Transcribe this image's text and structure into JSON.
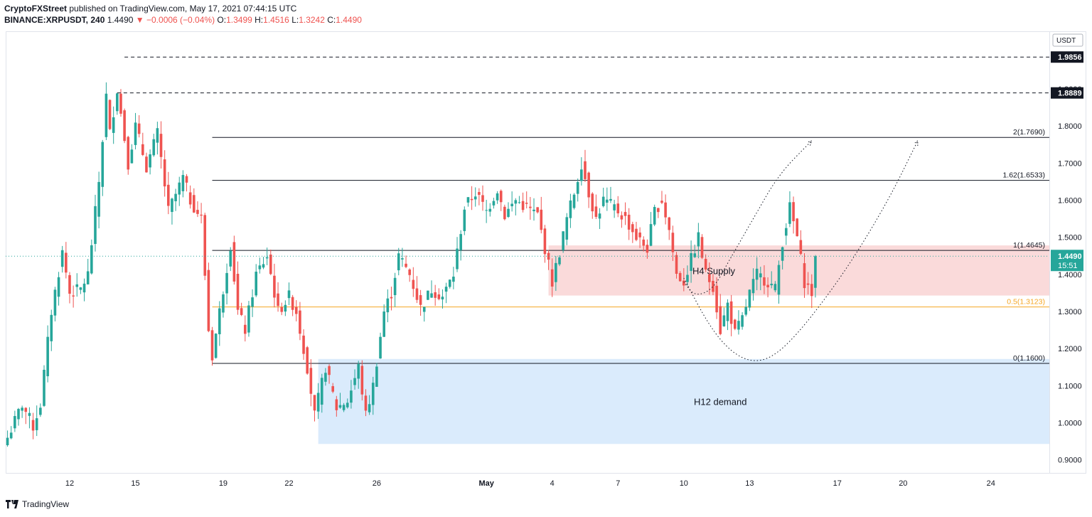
{
  "header": {
    "author": "CryptoFXStreet",
    "published_text": " published on TradingView.com, May 17, 2021 07:44:15 UTC",
    "symbol": "BINANCE:XRPUSDT, 240",
    "last": "1.4490",
    "change": "−0.0006 (−0.04%)",
    "o_label": "O:",
    "o_value": "1.3499",
    "h_label": "H:",
    "h_value": "1.4516",
    "l_label": "L:",
    "l_value": "1.3242",
    "c_label": "C:",
    "c_value": "1.4490"
  },
  "footer": {
    "brand": "TradingView"
  },
  "colors": {
    "up": "#26a69a",
    "down": "#ef5350",
    "supply_zone": "#f9d3d3",
    "demand_zone": "#d3e8fb",
    "fib_mid": "#f5a623",
    "last_price_bg": "#26a69a"
  },
  "chart_data": {
    "type": "candlestick",
    "currency": "USDT",
    "x_axis": {
      "tick_labels": [
        {
          "label": "12",
          "index": 17
        },
        {
          "label": "15",
          "index": 35
        },
        {
          "label": "19",
          "index": 59
        },
        {
          "label": "22",
          "index": 77
        },
        {
          "label": "26",
          "index": 101
        },
        {
          "label": "May",
          "index": 131
        },
        {
          "label": "4",
          "index": 149
        },
        {
          "label": "7",
          "index": 167
        },
        {
          "label": "10",
          "index": 185
        },
        {
          "label": "13",
          "index": 203
        },
        {
          "label": "17",
          "index": 227
        },
        {
          "label": "20",
          "index": 245
        },
        {
          "label": "24",
          "index": 269
        }
      ],
      "range": [
        -0.5,
        285
      ]
    },
    "y_axis": {
      "ticks": [
        "0.9000",
        "1.0000",
        "1.1000",
        "1.2000",
        "1.3000",
        "1.4000",
        "1.5000",
        "1.6000",
        "1.7000",
        "1.8000",
        "1.9000"
      ],
      "range": [
        0.865,
        2.055
      ]
    },
    "anchors": [
      {
        "i": 0,
        "c": 0.96
      },
      {
        "i": 4,
        "c": 1.05
      },
      {
        "i": 7,
        "c": 0.99
      },
      {
        "i": 9,
        "c": 1.05
      },
      {
        "i": 12,
        "c": 1.3
      },
      {
        "i": 15,
        "c": 1.46
      },
      {
        "i": 17,
        "c": 1.35
      },
      {
        "i": 20,
        "c": 1.36
      },
      {
        "i": 22,
        "c": 1.4
      },
      {
        "i": 25,
        "c": 1.65
      },
      {
        "i": 27,
        "c": 1.88
      },
      {
        "i": 28,
        "c": 1.78
      },
      {
        "i": 30,
        "c": 1.9
      },
      {
        "i": 33,
        "c": 1.7
      },
      {
        "i": 35,
        "c": 1.8
      },
      {
        "i": 38,
        "c": 1.69
      },
      {
        "i": 41,
        "c": 1.78
      },
      {
        "i": 44,
        "c": 1.57
      },
      {
        "i": 48,
        "c": 1.66
      },
      {
        "i": 50,
        "c": 1.6
      },
      {
        "i": 53,
        "c": 1.55
      },
      {
        "i": 55,
        "c": 1.25
      },
      {
        "i": 56,
        "c": 1.18
      },
      {
        "i": 58,
        "c": 1.3
      },
      {
        "i": 61,
        "c": 1.48
      },
      {
        "i": 63,
        "c": 1.3
      },
      {
        "i": 65,
        "c": 1.25
      },
      {
        "i": 68,
        "c": 1.4
      },
      {
        "i": 71,
        "c": 1.45
      },
      {
        "i": 74,
        "c": 1.3
      },
      {
        "i": 77,
        "c": 1.34
      },
      {
        "i": 79,
        "c": 1.3
      },
      {
        "i": 82,
        "c": 1.15
      },
      {
        "i": 84,
        "c": 1.02
      },
      {
        "i": 87,
        "c": 1.15
      },
      {
        "i": 90,
        "c": 1.04
      },
      {
        "i": 93,
        "c": 1.06
      },
      {
        "i": 96,
        "c": 1.15
      },
      {
        "i": 98,
        "c": 1.02
      },
      {
        "i": 100,
        "c": 1.1
      },
      {
        "i": 103,
        "c": 1.3
      },
      {
        "i": 105,
        "c": 1.35
      },
      {
        "i": 107,
        "c": 1.45
      },
      {
        "i": 110,
        "c": 1.4
      },
      {
        "i": 113,
        "c": 1.31
      },
      {
        "i": 116,
        "c": 1.36
      },
      {
        "i": 119,
        "c": 1.34
      },
      {
        "i": 122,
        "c": 1.4
      },
      {
        "i": 125,
        "c": 1.58
      },
      {
        "i": 128,
        "c": 1.62
      },
      {
        "i": 131,
        "c": 1.57
      },
      {
        "i": 134,
        "c": 1.63
      },
      {
        "i": 136,
        "c": 1.56
      },
      {
        "i": 139,
        "c": 1.6
      },
      {
        "i": 142,
        "c": 1.58
      },
      {
        "i": 145,
        "c": 1.56
      },
      {
        "i": 147,
        "c": 1.47
      },
      {
        "i": 149,
        "c": 1.38
      },
      {
        "i": 151,
        "c": 1.46
      },
      {
        "i": 153,
        "c": 1.55
      },
      {
        "i": 155,
        "c": 1.62
      },
      {
        "i": 157,
        "c": 1.7
      },
      {
        "i": 159,
        "c": 1.62
      },
      {
        "i": 161,
        "c": 1.55
      },
      {
        "i": 163,
        "c": 1.6
      },
      {
        "i": 166,
        "c": 1.58
      },
      {
        "i": 169,
        "c": 1.55
      },
      {
        "i": 172,
        "c": 1.5
      },
      {
        "i": 175,
        "c": 1.47
      },
      {
        "i": 177,
        "c": 1.57
      },
      {
        "i": 179,
        "c": 1.6
      },
      {
        "i": 181,
        "c": 1.52
      },
      {
        "i": 183,
        "c": 1.4
      },
      {
        "i": 185,
        "c": 1.38
      },
      {
        "i": 187,
        "c": 1.44
      },
      {
        "i": 189,
        "c": 1.5
      },
      {
        "i": 191,
        "c": 1.4
      },
      {
        "i": 193,
        "c": 1.37
      },
      {
        "i": 195,
        "c": 1.25
      },
      {
        "i": 197,
        "c": 1.32
      },
      {
        "i": 199,
        "c": 1.24
      },
      {
        "i": 201,
        "c": 1.28
      },
      {
        "i": 203,
        "c": 1.35
      },
      {
        "i": 205,
        "c": 1.4
      },
      {
        "i": 208,
        "c": 1.38
      },
      {
        "i": 210,
        "c": 1.36
      },
      {
        "i": 212,
        "c": 1.49
      },
      {
        "i": 214,
        "c": 1.58
      },
      {
        "i": 216,
        "c": 1.5
      },
      {
        "i": 218,
        "c": 1.38
      },
      {
        "i": 220,
        "c": 1.35
      },
      {
        "i": 221,
        "c": 1.449
      }
    ],
    "price_lines": [
      {
        "value": 1.9856,
        "label": "1.9856",
        "style": "dashed",
        "from_index": 32
      },
      {
        "value": 1.8889,
        "label": "1.8889",
        "style": "dashed",
        "from_index": 30
      }
    ],
    "fib_levels": [
      {
        "ratio": "2",
        "value": 1.769,
        "label": "2(1.7690)"
      },
      {
        "ratio": "1.62",
        "value": 1.6533,
        "label": "1.62(1.6533)"
      },
      {
        "ratio": "1",
        "value": 1.4645,
        "label": "1(1.4645)"
      },
      {
        "ratio": "0.5",
        "value": 1.3123,
        "label": "0.5(1.3123)"
      },
      {
        "ratio": "0",
        "value": 1.16,
        "label": "0(1.1600)"
      }
    ],
    "zones": [
      {
        "name": "H4 Supply",
        "label": "H4 Supply",
        "y_from": 1.343,
        "y_to": 1.478,
        "from_index": 148
      },
      {
        "name": "H12 demand",
        "label": "H12 demand",
        "y_from": 0.943,
        "y_to": 1.172,
        "from_index": 85
      }
    ],
    "projections": [
      {
        "points": [
          [
            185,
            1.38
          ],
          [
            188,
            1.34
          ],
          [
            193,
            1.36
          ],
          [
            197,
            1.43
          ],
          [
            204,
            1.55
          ],
          [
            211,
            1.67
          ],
          [
            220,
            1.76
          ]
        ]
      },
      {
        "points": [
          [
            185,
            1.39
          ],
          [
            192,
            1.26
          ],
          [
            198,
            1.19
          ],
          [
            204,
            1.162
          ],
          [
            210,
            1.18
          ],
          [
            218,
            1.26
          ],
          [
            230,
            1.42
          ],
          [
            241,
            1.6
          ],
          [
            249,
            1.76
          ]
        ]
      }
    ],
    "last_price": {
      "value": 1.449,
      "label": "1.4490",
      "countdown": "15:51"
    }
  }
}
